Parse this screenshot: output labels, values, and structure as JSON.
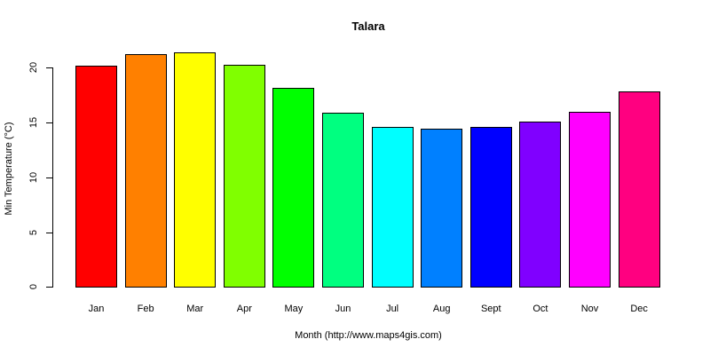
{
  "chart_data": {
    "type": "bar",
    "title": "Talara",
    "xlabel": "Month (http://www.maps4gis.com)",
    "ylabel": "Min Temperature (°C)",
    "ylim": [
      0,
      20
    ],
    "yticks": [
      0,
      5,
      10,
      15,
      20
    ],
    "categories": [
      "Jan",
      "Feb",
      "Mar",
      "Apr",
      "May",
      "Jun",
      "Jul",
      "Aug",
      "Sept",
      "Oct",
      "Nov",
      "Dec"
    ],
    "values": [
      20.2,
      21.2,
      21.4,
      20.3,
      18.2,
      15.9,
      14.6,
      14.4,
      14.6,
      15.1,
      16.0,
      17.8
    ],
    "colors": [
      "#FF0000",
      "#FF8000",
      "#FFFF00",
      "#80FF00",
      "#00FF00",
      "#00FF80",
      "#00FFFF",
      "#0080FF",
      "#0000FF",
      "#8000FF",
      "#FF00FF",
      "#FF0080"
    ],
    "grid": false,
    "legend": null
  }
}
